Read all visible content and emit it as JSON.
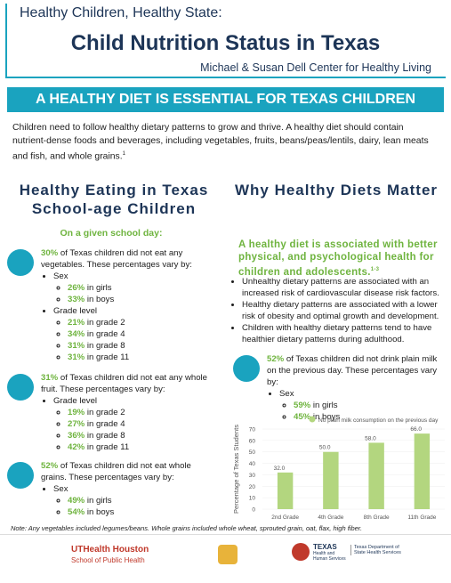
{
  "header": {
    "kicker": "Healthy Children, Healthy State:",
    "title": "Child Nutrition Status in Texas",
    "org": "Michael & Susan Dell Center for Healthy Living"
  },
  "banner": "A HEALTHY DIET IS ESSENTIAL FOR TEXAS CHILDREN",
  "intro": {
    "text": "Children need to follow healthy dietary patterns to grow and thrive. A healthy diet should contain nutrient-dense foods and beverages, including vegetables, fruits, beans/peas/lentils, dairy, lean meats and fish, and whole grains.",
    "ref": "1"
  },
  "left": {
    "heading": "Healthy Eating in Texas School-age Children",
    "subheading": "On a given school day:",
    "blocks": [
      {
        "lead": "30%",
        "text": " of Texas children did not eat any vegetables. These percentages vary by:",
        "groups": [
          {
            "label": "Sex",
            "items": [
              {
                "value": "26%",
                "text": " in girls"
              },
              {
                "value": "33%",
                "text": " in boys"
              }
            ]
          },
          {
            "label": "Grade level",
            "items": [
              {
                "value": "21%",
                "text": " in grade 2"
              },
              {
                "value": "34%",
                "text": " in grade 4"
              },
              {
                "value": "31%",
                "text": " in grade 8"
              },
              {
                "value": "31%",
                "text": " in grade 11"
              }
            ]
          }
        ]
      },
      {
        "lead": "31%",
        "text": " of Texas children did not eat any whole fruit. These percentages vary by:",
        "groups": [
          {
            "label": "Grade level",
            "items": [
              {
                "value": "19%",
                "text": " in grade 2"
              },
              {
                "value": "27%",
                "text": " in grade 4"
              },
              {
                "value": "36%",
                "text": " in grade 8"
              },
              {
                "value": "42%",
                "text": " in grade 11"
              }
            ]
          }
        ]
      },
      {
        "lead": "52%",
        "text": " of Texas children did not eat whole grains. These percentages vary by:",
        "groups": [
          {
            "label": "Sex",
            "items": [
              {
                "value": "49%",
                "text": " in girls"
              },
              {
                "value": "54%",
                "text": " in boys"
              }
            ]
          }
        ]
      }
    ]
  },
  "right": {
    "heading": "Why Healthy Diets Matter",
    "lead": "A healthy diet is associated with better physical, and psychological health for children and adolescents.",
    "lead_ref": "1-3",
    "bullets": [
      "Unhealthy dietary patterns are associated with an increased risk of cardiovascular disease risk factors.",
      "Healthy dietary patterns are associated with a lower risk of obesity and optimal growth and development.",
      "Children with healthy dietary patterns tend to have healthier dietary patterns during adulthood."
    ],
    "milk": {
      "lead": "52%",
      "text": " of Texas children did not drink plain milk on the previous day. These percentages vary by:",
      "groups": [
        {
          "label": "Sex",
          "items": [
            {
              "value": "59%",
              "text": " in girls"
            },
            {
              "value": "45%",
              "text": " in boys"
            }
          ]
        }
      ]
    },
    "chart": {
      "type": "bar",
      "y_label": "Percentage of Texas Students",
      "categories": [
        "2nd Grade",
        "4th Grade",
        "8th Grade",
        "11th Grade"
      ],
      "series": [
        {
          "name": "No plain milk consumption on the previous day",
          "color": "#b3d67f",
          "values": [
            32,
            50,
            58,
            66
          ],
          "value_labels": [
            "32.0",
            "50.0",
            "58.0",
            "66.0"
          ]
        }
      ],
      "ylim": [
        0,
        70
      ],
      "yticks": [
        0,
        10,
        20,
        30,
        40,
        50,
        60,
        70
      ]
    }
  },
  "note": "Note: Any vegetables included legumes/beans. Whole grains included whole wheat, sprouted grain, oat, flax, high fiber.",
  "footer": {
    "logo1": "UTHealth Houston",
    "logo1_sub": "School of Public Health",
    "logo2": "TEXAS",
    "logo2_sub": "Health and Human Services",
    "logo3": "Texas Department of State Health Services"
  }
}
